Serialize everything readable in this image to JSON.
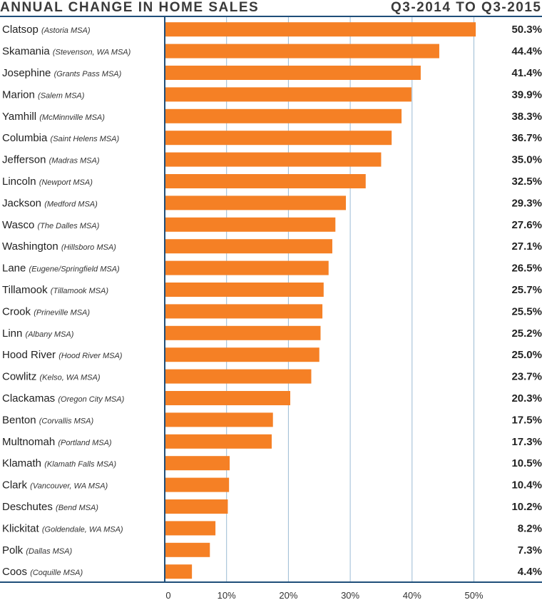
{
  "header": {
    "title": "ANNUAL CHANGE IN HOME SALES",
    "period": "Q3-2014 TO Q3-2015"
  },
  "colors": {
    "bar": "#f58025",
    "axis": "#1f4e79",
    "grid": "#9bbbd4",
    "text": "#222222"
  },
  "chart_data": {
    "type": "bar",
    "orientation": "horizontal",
    "title": "ANNUAL CHANGE IN HOME SALES",
    "subtitle": "Q3-2014 TO Q3-2015",
    "xlabel": "",
    "ylabel": "",
    "xlim": [
      0,
      50
    ],
    "x_ticks": [
      0,
      10,
      20,
      30,
      40,
      50
    ],
    "x_tick_labels": [
      "0",
      "10%",
      "20%",
      "30%",
      "40%",
      "50%"
    ],
    "grid": true,
    "categories": [
      {
        "name": "Clatsop",
        "msa": "(Astoria MSA)",
        "value": 50.3,
        "label": "50.3%"
      },
      {
        "name": "Skamania",
        "msa": "(Stevenson, WA MSA)",
        "value": 44.4,
        "label": "44.4%"
      },
      {
        "name": "Josephine",
        "msa": "(Grants Pass MSA)",
        "value": 41.4,
        "label": "41.4%"
      },
      {
        "name": "Marion",
        "msa": "(Salem MSA)",
        "value": 39.9,
        "label": "39.9%"
      },
      {
        "name": "Yamhill",
        "msa": "(McMinnville MSA)",
        "value": 38.3,
        "label": "38.3%"
      },
      {
        "name": "Columbia",
        "msa": "(Saint Helens MSA)",
        "value": 36.7,
        "label": "36.7%"
      },
      {
        "name": "Jefferson",
        "msa": "(Madras MSA)",
        "value": 35.0,
        "label": "35.0%"
      },
      {
        "name": "Lincoln",
        "msa": "(Newport MSA)",
        "value": 32.5,
        "label": "32.5%"
      },
      {
        "name": "Jackson",
        "msa": "(Medford MSA)",
        "value": 29.3,
        "label": "29.3%"
      },
      {
        "name": "Wasco",
        "msa": "(The Dalles MSA)",
        "value": 27.6,
        "label": "27.6%"
      },
      {
        "name": "Washington",
        "msa": "(Hillsboro MSA)",
        "value": 27.1,
        "label": "27.1%"
      },
      {
        "name": "Lane",
        "msa": "(Eugene/Springfield MSA)",
        "value": 26.5,
        "label": "26.5%"
      },
      {
        "name": "Tillamook",
        "msa": "(Tillamook MSA)",
        "value": 25.7,
        "label": "25.7%"
      },
      {
        "name": "Crook",
        "msa": "(Prineville MSA)",
        "value": 25.5,
        "label": "25.5%"
      },
      {
        "name": "Linn",
        "msa": "(Albany MSA)",
        "value": 25.2,
        "label": "25.2%"
      },
      {
        "name": "Hood River",
        "msa": "(Hood River MSA)",
        "value": 25.0,
        "label": "25.0%"
      },
      {
        "name": "Cowlitz",
        "msa": "(Kelso, WA MSA)",
        "value": 23.7,
        "label": "23.7%"
      },
      {
        "name": "Clackamas",
        "msa": "(Oregon City MSA)",
        "value": 20.3,
        "label": "20.3%"
      },
      {
        "name": "Benton",
        "msa": "(Corvallis MSA)",
        "value": 17.5,
        "label": "17.5%"
      },
      {
        "name": "Multnomah",
        "msa": "(Portland MSA)",
        "value": 17.3,
        "label": "17.3%"
      },
      {
        "name": "Klamath",
        "msa": "(Klamath Falls MSA)",
        "value": 10.5,
        "label": "10.5%"
      },
      {
        "name": "Clark",
        "msa": "(Vancouver, WA MSA)",
        "value": 10.4,
        "label": "10.4%"
      },
      {
        "name": "Deschutes",
        "msa": "(Bend MSA)",
        "value": 10.2,
        "label": "10.2%"
      },
      {
        "name": "Klickitat",
        "msa": "(Goldendale, WA MSA)",
        "value": 8.2,
        "label": "8.2%"
      },
      {
        "name": "Polk",
        "msa": "(Dallas MSA)",
        "value": 7.3,
        "label": "7.3%"
      },
      {
        "name": "Coos",
        "msa": "(Coquille MSA)",
        "value": 4.4,
        "label": "4.4%"
      }
    ]
  }
}
